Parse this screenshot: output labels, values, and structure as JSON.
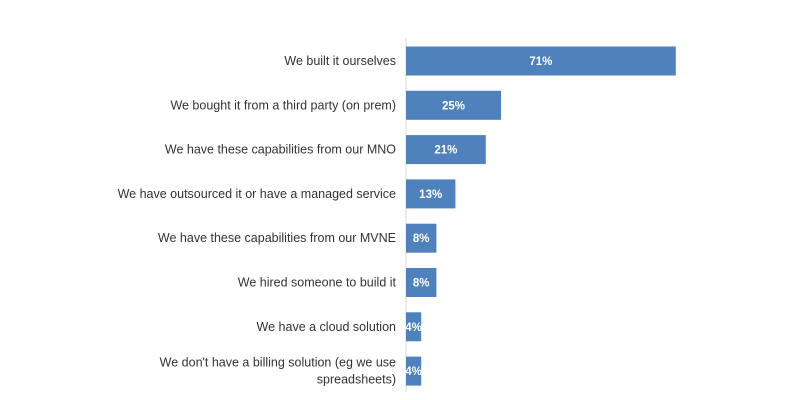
{
  "chart_data": {
    "type": "bar",
    "orientation": "horizontal",
    "categories": [
      [
        "We built it ourselves"
      ],
      [
        "We bought it from a third party (on prem)"
      ],
      [
        "We have these capabilities from our MNO"
      ],
      [
        "We have outsourced it or have a managed service"
      ],
      [
        "We have these capabilities from our MVNE"
      ],
      [
        "We hired someone to build it"
      ],
      [
        "We have a cloud solution"
      ],
      [
        "We don't have a billing solution (eg we use",
        "spreadsheets)"
      ]
    ],
    "values": [
      71,
      25,
      21,
      13,
      8,
      8,
      4,
      4
    ],
    "value_labels": [
      "71%",
      "25%",
      "21%",
      "13%",
      "8%",
      "8%",
      "4%",
      "4%"
    ],
    "xlim": [
      0,
      100
    ],
    "bar_color": "#4f81bd",
    "value_label_color": "#ffffff",
    "grid": false,
    "legend": "none"
  }
}
